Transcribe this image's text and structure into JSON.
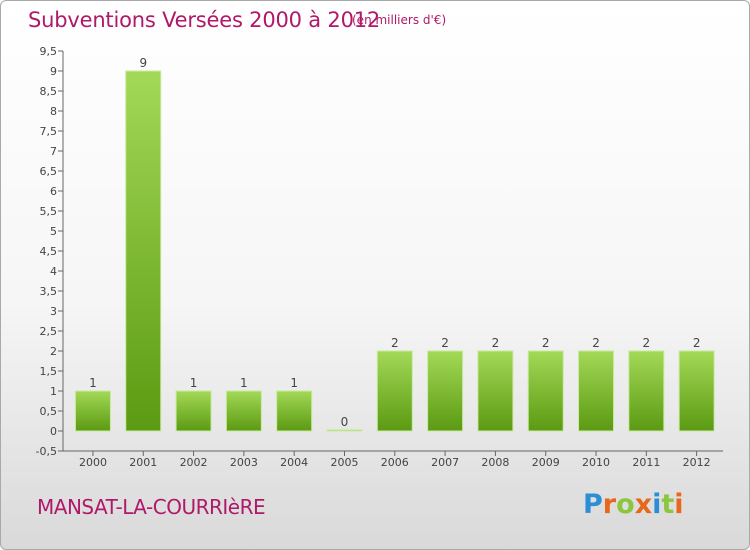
{
  "header": {
    "title": "Subventions Versées 2000 à 2012",
    "unit_note": "(en milliers d'€)"
  },
  "footer": {
    "commune": "MANSAT-LA-COURRIèRE",
    "brand": "Proxiti"
  },
  "colors": {
    "title": "#b0186a",
    "bar_light": "#9ed452",
    "bar_dark": "#5b9a12",
    "axis": "#555555",
    "grid": "#cccccc"
  },
  "chart_data": {
    "type": "bar",
    "categories": [
      "2000",
      "2001",
      "2002",
      "2003",
      "2004",
      "2005",
      "2006",
      "2007",
      "2008",
      "2009",
      "2010",
      "2011",
      "2012"
    ],
    "values": [
      1,
      9,
      1,
      1,
      1,
      0,
      2,
      2,
      2,
      2,
      2,
      2,
      2
    ],
    "data_labels": [
      "1",
      "9",
      "1",
      "1",
      "1",
      "0",
      "2",
      "2",
      "2",
      "2",
      "2",
      "2",
      "2"
    ],
    "y_ticks": [
      "-0,5",
      "0",
      "0,5",
      "1",
      "1,5",
      "2",
      "2,5",
      "3",
      "3,5",
      "4",
      "4,5",
      "5",
      "5,5",
      "6",
      "6,5",
      "7",
      "7,5",
      "8",
      "8,5",
      "9",
      "9,5"
    ],
    "ylim": [
      -0.5,
      9.5
    ],
    "grid": false
  }
}
